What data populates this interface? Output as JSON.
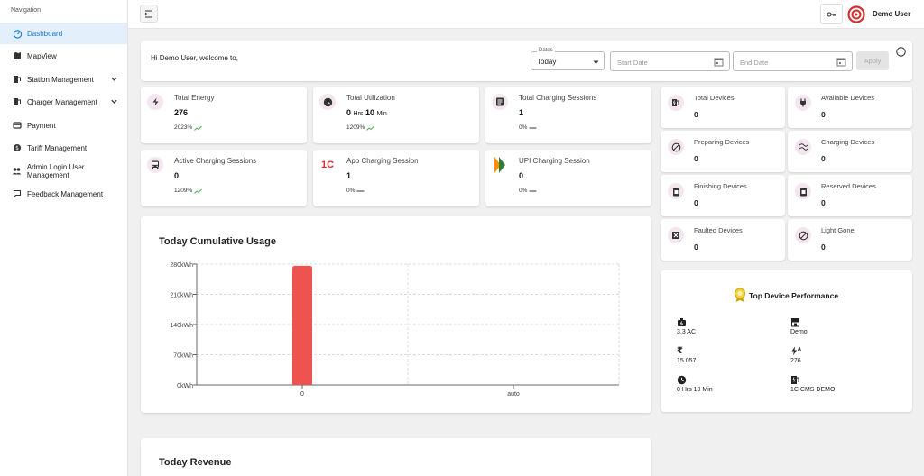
{
  "sidebar": {
    "title": "Navigation",
    "items": [
      {
        "label": "Dashboard",
        "icon": "dashboard-icon"
      },
      {
        "label": "MapView",
        "icon": "map-icon"
      },
      {
        "label": "Station Management",
        "icon": "station-icon"
      },
      {
        "label": "Charger Management",
        "icon": "charger-icon"
      },
      {
        "label": "Payment",
        "icon": "payment-icon"
      },
      {
        "label": "Tariff Management",
        "icon": "tariff-icon"
      },
      {
        "label": "Admin Login User Management",
        "icon": "users-icon"
      },
      {
        "label": "Feedback Management",
        "icon": "feedback-icon"
      }
    ]
  },
  "header": {
    "username": "Demo User"
  },
  "welcome": {
    "text": "Hi Demo User, welcome to,",
    "dates_label": "Dates",
    "dates_value": "Today",
    "start_placeholder": "Start Date",
    "end_placeholder": "End Date",
    "apply_label": "Apply"
  },
  "stats": [
    {
      "label": "Total Energy",
      "value": "276",
      "pct": "2023%"
    },
    {
      "label": "Total Utilization",
      "v1": "0",
      "u1": "Hrs",
      "v2": "10",
      "u2": "Min",
      "pct": "1209%"
    },
    {
      "label": "Total Charging Sessions",
      "value": "1",
      "pct": "0%"
    },
    {
      "label": "Active Charging Sessions",
      "value": "0",
      "pct": "1209%"
    },
    {
      "label": "App Charging Session",
      "value": "1",
      "pct": "0%",
      "logo": "1C"
    },
    {
      "label": "UPI Charging Session",
      "value": "0",
      "pct": "0%"
    }
  ],
  "devices": [
    {
      "label": "Total Devices",
      "value": "0"
    },
    {
      "label": "Available Devices",
      "value": "0"
    },
    {
      "label": "Preparing Devices",
      "value": "0"
    },
    {
      "label": "Charging Devices",
      "value": "0"
    },
    {
      "label": "Finishing Devices",
      "value": "0"
    },
    {
      "label": "Reserved Devices",
      "value": "0"
    },
    {
      "label": "Faulted Devices",
      "value": "0"
    },
    {
      "label": "Light Gone",
      "value": "0"
    }
  ],
  "chart_data": {
    "type": "bar",
    "title": "Today Cumulative Usage",
    "categories": [
      "0",
      "auto"
    ],
    "values": [
      276,
      0
    ],
    "y_ticks": [
      "0kWh",
      "70kWh",
      "140kWh",
      "210kWh",
      "280kWh"
    ],
    "ylim": [
      0,
      280
    ],
    "grid": true,
    "bar_color": "#ef5350"
  },
  "performance": {
    "title": "Top Device Performance",
    "items": [
      {
        "value": "3.3 AC"
      },
      {
        "value": "Demo"
      },
      {
        "value": "15.057"
      },
      {
        "value": "276"
      },
      {
        "value": "0 Hrs 10 Min"
      },
      {
        "value": "1C CMS DEMO"
      }
    ]
  },
  "revenue": {
    "title": "Today Revenue"
  },
  "colors": {
    "accent": "#1976d2",
    "bar": "#ef5350",
    "trend": "#4caf50"
  }
}
